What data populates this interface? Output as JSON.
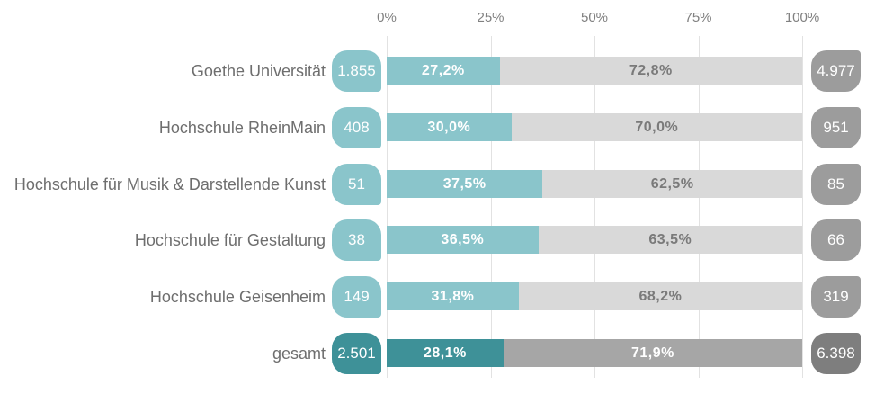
{
  "colors": {
    "teal": "#8AC5CB",
    "teal_dark": "#3E9198",
    "bar_gray_light": "#D9D9D9",
    "bar_gray_dark": "#A6A6A6",
    "pill_gray": "#9C9C9C",
    "pill_gray_dark": "#7E7E7E",
    "segment_text_gray": "#7A7A7A",
    "axis_text": "#808080",
    "label_text": "#6E6E6E",
    "gridline": "#E2E2E2"
  },
  "chart_data": {
    "type": "bar",
    "orientation": "horizontal",
    "stacked": true,
    "title": "",
    "xlabel": "",
    "ylabel": "",
    "xlim": [
      0,
      100
    ],
    "grid": "vertical",
    "legend_position": "none",
    "axis_ticks": [
      "0%",
      "25%",
      "50%",
      "75%",
      "100%"
    ],
    "categories": [
      "Goethe Universität",
      "Hochschule RheinMain",
      "Hochschule für Musik & Darstellende Kunst",
      "Hochschule für Gestaltung",
      "Hochschule Geisenheim",
      "gesamt"
    ],
    "rows": [
      {
        "label": "Goethe Universität",
        "left_count": "1.855",
        "pct_a": 27.2,
        "pct_a_label": "27,2%",
        "pct_b": 72.8,
        "pct_b_label": "72,8%",
        "right_count": "4.977",
        "emphasis": false
      },
      {
        "label": "Hochschule RheinMain",
        "left_count": "408",
        "pct_a": 30.0,
        "pct_a_label": "30,0%",
        "pct_b": 70.0,
        "pct_b_label": "70,0%",
        "right_count": "951",
        "emphasis": false
      },
      {
        "label": "Hochschule für Musik & Darstellende Kunst",
        "left_count": "51",
        "pct_a": 37.5,
        "pct_a_label": "37,5%",
        "pct_b": 62.5,
        "pct_b_label": "62,5%",
        "right_count": "85",
        "emphasis": false
      },
      {
        "label": "Hochschule für Gestaltung",
        "left_count": "38",
        "pct_a": 36.5,
        "pct_a_label": "36,5%",
        "pct_b": 63.5,
        "pct_b_label": "63,5%",
        "right_count": "66",
        "emphasis": false
      },
      {
        "label": "Hochschule Geisenheim",
        "left_count": "149",
        "pct_a": 31.8,
        "pct_a_label": "31,8%",
        "pct_b": 68.2,
        "pct_b_label": "68,2%",
        "right_count": "319",
        "emphasis": false
      },
      {
        "label": "gesamt",
        "left_count": "2.501",
        "pct_a": 28.1,
        "pct_a_label": "28,1%",
        "pct_b": 71.9,
        "pct_b_label": "71,9%",
        "right_count": "6.398",
        "emphasis": true
      }
    ]
  }
}
